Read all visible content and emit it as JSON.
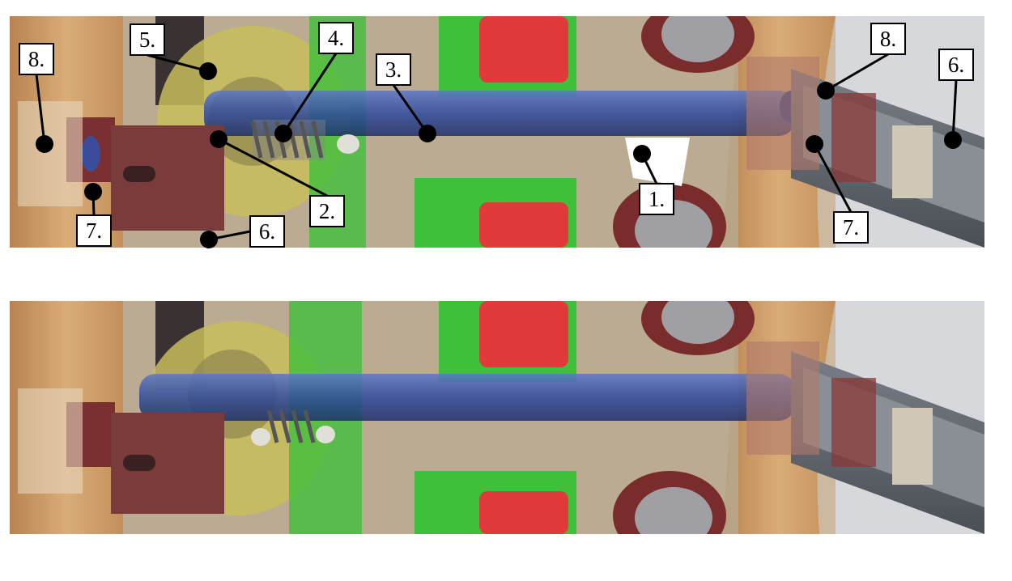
{
  "figure": {
    "panels": [
      {
        "id": "top",
        "callouts": [
          {
            "text": "1.",
            "target": "white gap between disc segments"
          },
          {
            "text": "2.",
            "target": "rod end"
          },
          {
            "text": "3.",
            "target": "blue rod"
          },
          {
            "text": "4.",
            "target": "spring"
          },
          {
            "text": "5.",
            "target": "yellow wheel"
          },
          {
            "text": "6.",
            "target": "rail bottom"
          },
          {
            "text": "6.",
            "target": "grey channel rail"
          },
          {
            "text": "7.",
            "target": "left block"
          },
          {
            "text": "7.",
            "target": "right block"
          },
          {
            "text": "8.",
            "target": "left outer bracket"
          },
          {
            "text": "8.",
            "target": "right bracket"
          }
        ]
      },
      {
        "id": "bottom",
        "callouts": []
      }
    ],
    "colors": {
      "wood": "#c99a66",
      "rod": "#2f4a9e",
      "green_pcb": "#3fbf3a",
      "red_switch": "#e03a3a",
      "yellow_wheel": "#c8bc5a",
      "maroon": "#7a3030",
      "rail_grey": "#5c6066",
      "transparent_housing": "#d8c8b0"
    }
  }
}
